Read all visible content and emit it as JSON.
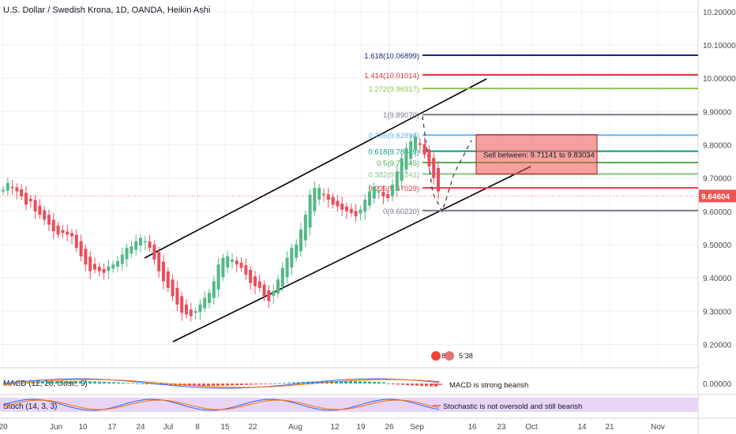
{
  "header": {
    "title": "U.S. Dollar / Swedish Krona, 1D, OANDA, Heikin Ashi"
  },
  "colors": {
    "up": "#53b987",
    "down": "#eb4d5c",
    "grid": "#eef0f3",
    "axis_text": "#4a4a4a",
    "price_badge": "#ef5350",
    "channel": "#000000",
    "stoch_bg": "#e8d5f5"
  },
  "chart_data": [
    {
      "type": "candlestick",
      "title": "U.S. Dollar / Swedish Krona, 1D, OANDA, Heikin Ashi",
      "price_axis": {
        "ticks": [
          "10.20000",
          "10.10000",
          "10.00000",
          "9.90000",
          "9.80000",
          "9.70000",
          "9.60000",
          "9.50000",
          "9.40000",
          "9.30000",
          "9.20000"
        ],
        "ylim": [
          9.13,
          10.235
        ]
      },
      "time_axis": {
        "ticks": [
          "20",
          "Jun",
          "10",
          "17",
          "24",
          "Jul",
          "8",
          "15",
          "22",
          "Aug",
          "12",
          "19",
          "26",
          "Sep",
          "16",
          "23",
          "Oct",
          "14",
          "21",
          "Nov"
        ]
      },
      "last_price": "9.64604",
      "fibonacci": {
        "levels": [
          {
            "ratio": "0",
            "price": 9.6022,
            "label": "0(9.60220)",
            "color": "#787b86"
          },
          {
            "ratio": "0.236",
            "price": 9.67029,
            "label": "0.236(9.67029)",
            "color": "#f23645"
          },
          {
            "ratio": "0.382",
            "price": 9.71241,
            "label": "0.382(9.71241)",
            "color": "#81c784"
          },
          {
            "ratio": "0.5",
            "price": 9.74645,
            "label": "0.5(9.74645)",
            "color": "#4caf50"
          },
          {
            "ratio": "0.618",
            "price": 9.78049,
            "label": "0.618(9.78049)",
            "color": "#089981"
          },
          {
            "ratio": "0.786",
            "price": 9.82896,
            "label": "0.786(9.82896)",
            "color": "#64b5f6"
          },
          {
            "ratio": "1",
            "price": 9.8907,
            "label": "1(9.89070)",
            "color": "#787b86"
          },
          {
            "ratio": "1.272",
            "price": 9.96917,
            "label": "1.272(9.96917)",
            "color": "#8bc34a"
          },
          {
            "ratio": "1.414",
            "price": 10.01014,
            "label": "1.414(10.01014)",
            "color": "#d32f2f"
          },
          {
            "ratio": "1.618",
            "price": 10.06899,
            "label": "1.618(10.06899)",
            "color": "#1a237e"
          }
        ]
      },
      "annotation": {
        "text": "Sell between: 9.71141 to 9.83034",
        "low": 9.71141,
        "high": 9.83034
      },
      "events_badge": {
        "count1": "8",
        "count2": "5",
        "count3": "'38"
      },
      "candles_close": [
        9.665,
        9.685,
        9.67,
        9.66,
        9.645,
        9.62,
        9.63,
        9.6,
        9.59,
        9.575,
        9.56,
        9.54,
        9.53,
        9.535,
        9.53,
        9.525,
        9.49,
        9.465,
        9.44,
        9.42,
        9.425,
        9.42,
        9.415,
        9.435,
        9.44,
        9.45,
        9.47,
        9.49,
        9.495,
        9.51,
        9.52,
        9.51,
        9.49,
        9.455,
        9.42,
        9.39,
        9.37,
        9.345,
        9.32,
        9.295,
        9.29,
        9.285,
        9.3,
        9.32,
        9.34,
        9.355,
        9.39,
        9.44,
        9.46,
        9.465,
        9.455,
        9.44,
        9.43,
        9.41,
        9.385,
        9.375,
        9.37,
        9.345,
        9.33,
        9.36,
        9.395,
        9.43,
        9.46,
        9.49,
        9.5,
        9.545,
        9.59,
        9.65,
        9.67,
        9.67,
        9.65,
        9.635,
        9.62,
        9.615,
        9.605,
        9.6,
        9.595,
        9.585,
        9.605,
        9.635,
        9.66,
        9.675,
        9.66,
        9.645,
        9.64,
        9.68,
        9.72,
        9.76,
        9.79,
        9.81,
        9.825,
        9.8,
        9.77,
        9.735,
        9.7,
        9.66
      ]
    },
    {
      "type": "line",
      "name": "MACD (12, 26, close, 9)",
      "label": "MACD (12, 26, close, 9)",
      "scale_tick": "0.00000",
      "note": "MACD is strong bearish"
    },
    {
      "type": "line",
      "name": "Stoch (14, 3, 3)",
      "label": "Stoch (14, 3, 3)",
      "note": "Stochastic is not oversold and still bearish"
    }
  ]
}
